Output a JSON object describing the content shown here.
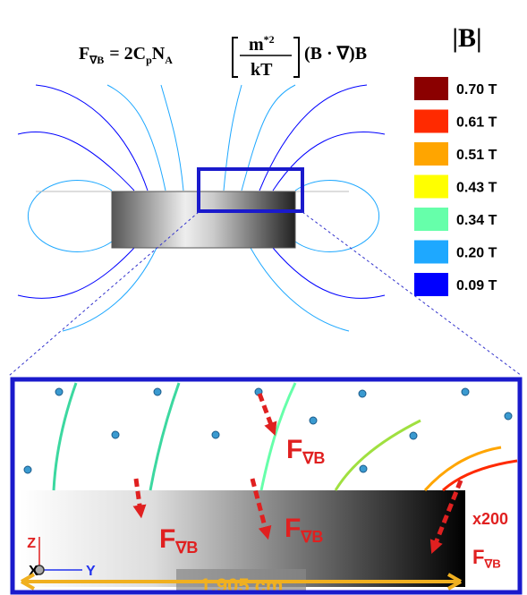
{
  "formula": {
    "lhs": "F",
    "lhs_sub": "∇B",
    "eq": "= 2C",
    "c_sub": "p",
    "n": "N",
    "n_sub": "A",
    "numerator": "m",
    "numerator_sup": "*2",
    "denominator": "kT",
    "rest": "(B · ∇)B"
  },
  "legend": {
    "title": "|B|",
    "items": [
      {
        "label": "0.70 T",
        "color": "#8b0000"
      },
      {
        "label": "0.61 T",
        "color": "#ff2a00"
      },
      {
        "label": "0.51 T",
        "color": "#ffa500"
      },
      {
        "label": "0.43 T",
        "color": "#ffff00"
      },
      {
        "label": "0.34 T",
        "color": "#66ffaa"
      },
      {
        "label": "0.20 T",
        "color": "#1ea8ff"
      },
      {
        "label": "0.09 T",
        "color": "#0000ff"
      }
    ]
  },
  "force_labels": [
    {
      "main": "F",
      "sub": "∇B"
    },
    {
      "main": "F",
      "sub": "∇B"
    },
    {
      "main": "F",
      "sub": "∇B"
    },
    {
      "main": "F",
      "sub": "∇B"
    }
  ],
  "axes": {
    "z": "Z",
    "x": "X",
    "y": "Y"
  },
  "scale_label": "x200",
  "dimension": "1.905 cm"
}
